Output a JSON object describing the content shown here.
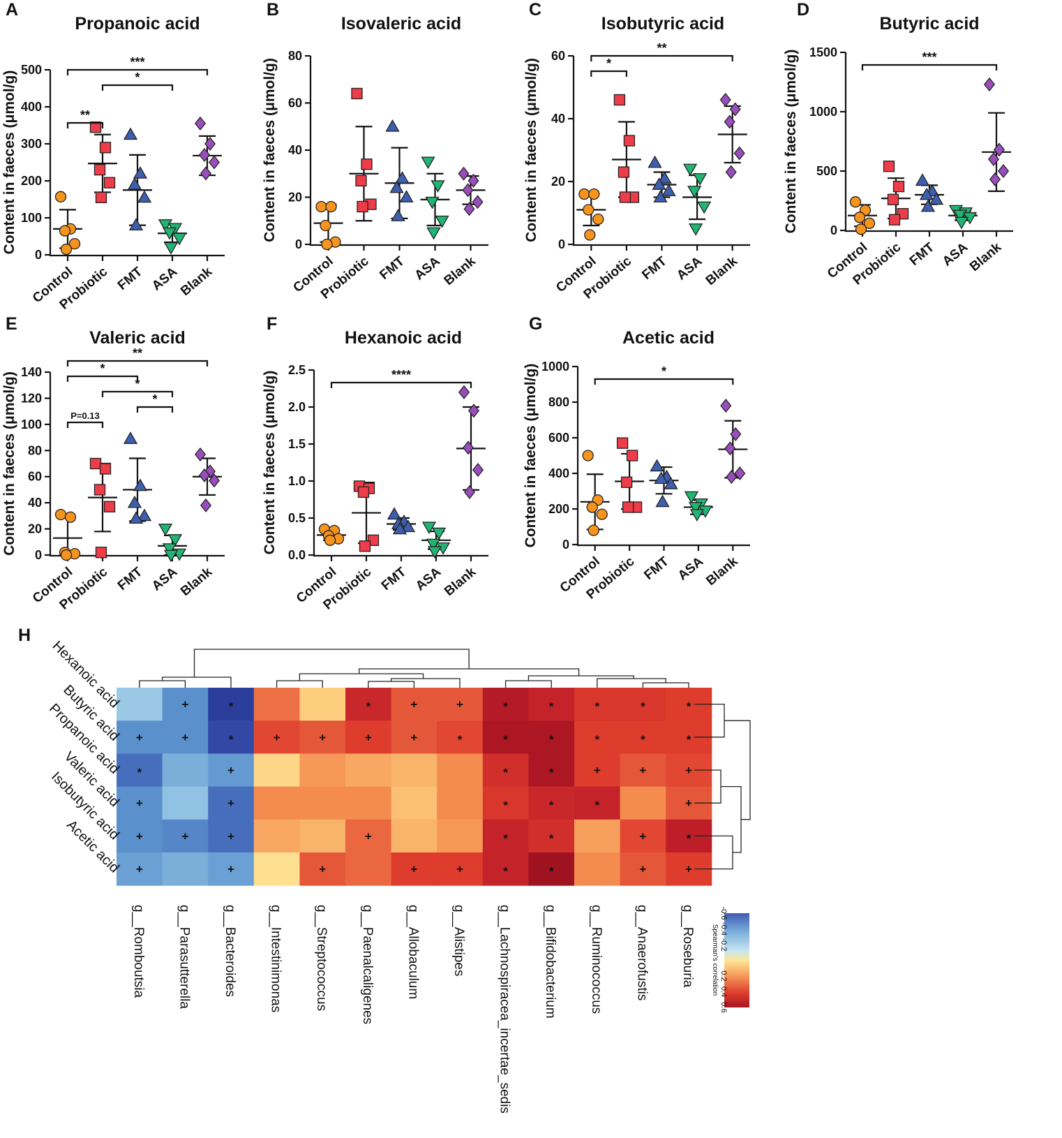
{
  "colors": {
    "Control": "#f7941d",
    "Probiotic": "#ee3d48",
    "FMT": "#3d5fae",
    "ASA": "#21b573",
    "Blank": "#9a4dbc"
  },
  "chart_data": [
    {
      "letter": "A",
      "type": "scatter",
      "title": "Propanoic acid",
      "ylabel": "Content in faeces (μmol/g)",
      "categories": [
        "Control",
        "Probiotic",
        "FMT",
        "ASA",
        "Blank"
      ],
      "ylim": [
        0,
        500
      ],
      "yticks": [
        0,
        100,
        200,
        300,
        400,
        500
      ],
      "ytick_labels": [
        "0",
        "100",
        "200",
        "300",
        "400",
        "500"
      ],
      "series": [
        {
          "name": "Control",
          "values": [
            157,
            70,
            65,
            30,
            15
          ],
          "mean": 70,
          "sd": 52
        },
        {
          "name": "Probiotic",
          "values": [
            345,
            290,
            230,
            195,
            155
          ],
          "mean": 247,
          "sd": 78
        },
        {
          "name": "FMT",
          "values": [
            325,
            220,
            190,
            155,
            80
          ],
          "mean": 175,
          "sd": 95
        },
        {
          "name": "ASA",
          "values": [
            82,
            72,
            60,
            45,
            20
          ],
          "mean": 58,
          "sd": 24
        },
        {
          "name": "Blank",
          "values": [
            355,
            300,
            270,
            250,
            220
          ],
          "mean": 268,
          "sd": 53
        }
      ],
      "significance": [
        {
          "from": "Control",
          "to": "Blank",
          "label": "***"
        },
        {
          "from": "Probiotic",
          "to": "ASA",
          "label": "*"
        },
        {
          "from": "Control",
          "to": "Probiotic",
          "label": "**"
        }
      ]
    },
    {
      "letter": "B",
      "type": "scatter",
      "title": "Isovaleric acid",
      "ylabel": "Content in faeces (μmol/g)",
      "categories": [
        "Control",
        "Probiotic",
        "FMT",
        "ASA",
        "Blank"
      ],
      "ylim": [
        0,
        80
      ],
      "yticks": [
        0,
        20,
        40,
        60,
        80
      ],
      "ytick_labels": [
        "0",
        "20",
        "40",
        "60",
        "80"
      ],
      "series": [
        {
          "name": "Control",
          "values": [
            16,
            16,
            8,
            1,
            0
          ],
          "mean": 9,
          "sd": 8
        },
        {
          "name": "Probiotic",
          "values": [
            64,
            34,
            27,
            17,
            16
          ],
          "mean": 30,
          "sd": 20
        },
        {
          "name": "FMT",
          "values": [
            50,
            28,
            24,
            20,
            12
          ],
          "mean": 26,
          "sd": 15
        },
        {
          "name": "ASA",
          "values": [
            35,
            25,
            18,
            10,
            5
          ],
          "mean": 19,
          "sd": 11
        },
        {
          "name": "Blank",
          "values": [
            30,
            27,
            23,
            18,
            15
          ],
          "mean": 23,
          "sd": 6
        }
      ],
      "significance": []
    },
    {
      "letter": "C",
      "type": "scatter",
      "title": "Isobutyric acid",
      "ylabel": "Content in faeces (μmol/g)",
      "categories": [
        "Control",
        "Probiotic",
        "FMT",
        "ASA",
        "Blank"
      ],
      "ylim": [
        0,
        60
      ],
      "yticks": [
        0,
        20,
        40,
        60
      ],
      "ytick_labels": [
        "0",
        "20",
        "40",
        "60"
      ],
      "series": [
        {
          "name": "Control",
          "values": [
            16,
            16,
            11,
            8,
            3
          ],
          "mean": 11,
          "sd": 5
        },
        {
          "name": "Probiotic",
          "values": [
            46,
            33,
            23,
            15,
            15
          ],
          "mean": 27,
          "sd": 12
        },
        {
          "name": "FMT",
          "values": [
            26,
            21,
            19,
            17,
            15
          ],
          "mean": 19,
          "sd": 4
        },
        {
          "name": "ASA",
          "values": [
            24,
            21,
            17,
            12,
            5
          ],
          "mean": 15,
          "sd": 7
        },
        {
          "name": "Blank",
          "values": [
            46,
            43,
            39,
            29,
            23
          ],
          "mean": 35,
          "sd": 9
        }
      ],
      "significance": [
        {
          "from": "Control",
          "to": "Blank",
          "label": "**"
        },
        {
          "from": "Control",
          "to": "Probiotic",
          "label": "*"
        }
      ]
    },
    {
      "letter": "D",
      "type": "scatter",
      "title": "Butyric acid",
      "ylabel": "Content in faeces (μmol/g)",
      "categories": [
        "Control",
        "Probiotic",
        "FMT",
        "ASA",
        "Blank"
      ],
      "ylim": [
        0,
        1500
      ],
      "yticks": [
        0,
        500,
        1000,
        1500
      ],
      "ytick_labels": [
        "0",
        "500",
        "1000",
        "1500"
      ],
      "series": [
        {
          "name": "Control",
          "values": [
            240,
            170,
            110,
            60,
            10
          ],
          "mean": 125,
          "sd": 90
        },
        {
          "name": "Probiotic",
          "values": [
            540,
            370,
            260,
            140,
            90
          ],
          "mean": 270,
          "sd": 170
        },
        {
          "name": "FMT",
          "values": [
            420,
            330,
            300,
            260,
            200
          ],
          "mean": 300,
          "sd": 80
        },
        {
          "name": "ASA",
          "values": [
            170,
            150,
            130,
            110,
            70
          ],
          "mean": 125,
          "sd": 40
        },
        {
          "name": "Blank",
          "values": [
            1230,
            680,
            600,
            500,
            430
          ],
          "mean": 660,
          "sd": 330
        }
      ],
      "significance": [
        {
          "from": "Control",
          "to": "Blank",
          "label": "***"
        }
      ]
    },
    {
      "letter": "E",
      "type": "scatter",
      "title": "Valeric acid",
      "ylabel": "Content in faeces (μmol/g)",
      "categories": [
        "Control",
        "Probiotic",
        "FMT",
        "ASA",
        "Blank"
      ],
      "ylim": [
        0,
        140
      ],
      "yticks": [
        0,
        20,
        40,
        60,
        80,
        100,
        120,
        140
      ],
      "ytick_labels": [
        "0",
        "20",
        "40",
        "60",
        "80",
        "100",
        "120",
        "140"
      ],
      "series": [
        {
          "name": "Control",
          "values": [
            31,
            29,
            2,
            1,
            0
          ],
          "mean": 13,
          "sd": 16
        },
        {
          "name": "Probiotic",
          "values": [
            70,
            66,
            50,
            37,
            2
          ],
          "mean": 44,
          "sd": 26
        },
        {
          "name": "FMT",
          "values": [
            89,
            53,
            40,
            30,
            28
          ],
          "mean": 50,
          "sd": 24
        },
        {
          "name": "ASA",
          "values": [
            20,
            12,
            5,
            1,
            0
          ],
          "mean": 7,
          "sd": 8
        },
        {
          "name": "Blank",
          "values": [
            77,
            64,
            61,
            57,
            38
          ],
          "mean": 60,
          "sd": 14
        }
      ],
      "significance": [
        {
          "from": "Control",
          "to": "Blank",
          "label": "**"
        },
        {
          "from": "Control",
          "to": "FMT",
          "label": "*"
        },
        {
          "from": "Probiotic",
          "to": "ASA",
          "label": "*"
        },
        {
          "from": "FMT",
          "to": "ASA",
          "label": "*"
        },
        {
          "from": "Control",
          "to": "Probiotic",
          "label": "P=0.13"
        }
      ]
    },
    {
      "letter": "F",
      "type": "scatter",
      "title": "Hexanoic acid",
      "ylabel": "Content in faeces (μmol/g)",
      "categories": [
        "Control",
        "Probiotic",
        "FMT",
        "ASA",
        "Blank"
      ],
      "ylim": [
        0,
        2.5
      ],
      "yticks": [
        0,
        0.5,
        1.0,
        1.5,
        2.0,
        2.5
      ],
      "ytick_labels": [
        "0.0",
        "0.5",
        "1.0",
        "1.5",
        "2.0",
        "2.5"
      ],
      "series": [
        {
          "name": "Control",
          "values": [
            0.35,
            0.33,
            0.26,
            0.22,
            0.2
          ],
          "mean": 0.27,
          "sd": 0.07
        },
        {
          "name": "Probiotic",
          "values": [
            0.93,
            0.9,
            0.85,
            0.2,
            0.12
          ],
          "mean": 0.57,
          "sd": 0.41
        },
        {
          "name": "FMT",
          "values": [
            0.55,
            0.45,
            0.42,
            0.38,
            0.35
          ],
          "mean": 0.42,
          "sd": 0.08
        },
        {
          "name": "ASA",
          "values": [
            0.38,
            0.3,
            0.15,
            0.1,
            0.05
          ],
          "mean": 0.2,
          "sd": 0.12
        },
        {
          "name": "Blank",
          "values": [
            2.2,
            1.95,
            1.45,
            1.15,
            0.85
          ],
          "mean": 1.44,
          "sd": 0.56
        }
      ],
      "significance": [
        {
          "from": "Control",
          "to": "Blank",
          "label": "****"
        }
      ]
    },
    {
      "letter": "G",
      "type": "scatter",
      "title": "Acetic acid",
      "ylabel": "Content in faeces (μmol/g)",
      "categories": [
        "Control",
        "Probiotic",
        "FMT",
        "ASA",
        "Blank"
      ],
      "ylim": [
        0,
        1000
      ],
      "yticks": [
        0,
        200,
        400,
        600,
        800,
        1000
      ],
      "ytick_labels": [
        "0",
        "200",
        "400",
        "600",
        "800",
        "1000"
      ],
      "series": [
        {
          "name": "Control",
          "values": [
            500,
            250,
            210,
            170,
            80
          ],
          "mean": 240,
          "sd": 155
        },
        {
          "name": "Probiotic",
          "values": [
            570,
            500,
            350,
            210,
            210
          ],
          "mean": 355,
          "sd": 155
        },
        {
          "name": "FMT",
          "values": [
            440,
            380,
            370,
            340,
            240
          ],
          "mean": 360,
          "sd": 75
        },
        {
          "name": "ASA",
          "values": [
            270,
            230,
            210,
            190,
            170
          ],
          "mean": 210,
          "sd": 40
        },
        {
          "name": "Blank",
          "values": [
            780,
            620,
            540,
            400,
            380
          ],
          "mean": 535,
          "sd": 160
        }
      ],
      "significance": [
        {
          "from": "Control",
          "to": "Blank",
          "label": "*"
        }
      ]
    },
    {
      "letter": "H",
      "type": "heatmap",
      "rows": [
        "Hexanoic acid",
        "Butyric acid",
        "Propanoic acid",
        "Valeric acid",
        "Isobutyric acid",
        "Acetic acid"
      ],
      "cols": [
        "g__Romboutsia",
        "g__Parasutterella",
        "g__Bacteroides",
        "g__Intestinimonas",
        "g__Streptococcus",
        "g__Paenalcaligenes",
        "g__Allobaculum",
        "g__Alistipes",
        "g__Lachnospiracea_incertae_sedis",
        "g__Bifidobacterium",
        "g__Ruminococcus",
        "g__Anaerofustis",
        "g__Roseburia"
      ],
      "values": [
        [
          -0.25,
          -0.45,
          -0.72,
          0.4,
          0.18,
          0.58,
          0.45,
          0.45,
          0.65,
          0.6,
          0.52,
          0.52,
          0.5
        ],
        [
          -0.45,
          -0.45,
          -0.68,
          0.48,
          0.45,
          0.5,
          0.45,
          0.48,
          0.68,
          0.68,
          0.5,
          0.5,
          0.5
        ],
        [
          -0.55,
          -0.35,
          -0.42,
          0.15,
          0.32,
          0.28,
          0.25,
          0.35,
          0.55,
          0.68,
          0.5,
          0.45,
          0.48
        ],
        [
          -0.45,
          -0.28,
          -0.55,
          0.35,
          0.35,
          0.35,
          0.22,
          0.35,
          0.52,
          0.58,
          0.6,
          0.35,
          0.45
        ],
        [
          -0.45,
          -0.48,
          -0.55,
          0.28,
          0.25,
          0.42,
          0.25,
          0.32,
          0.6,
          0.55,
          0.3,
          0.48,
          0.62
        ],
        [
          -0.4,
          -0.35,
          -0.4,
          0.12,
          0.45,
          0.42,
          0.5,
          0.5,
          0.6,
          0.72,
          0.35,
          0.45,
          0.5
        ]
      ],
      "marks": [
        [
          "",
          "+",
          "*",
          "",
          "",
          "*",
          "+",
          "+",
          "*",
          "*",
          "*",
          "*",
          "*"
        ],
        [
          "+",
          "+",
          "*",
          "+",
          "+",
          "+",
          "+",
          "*",
          "*",
          "*",
          "*",
          "*",
          "*"
        ],
        [
          "*",
          "",
          "+",
          "",
          "",
          "",
          "",
          "",
          "*",
          "*",
          "+",
          "+",
          "+"
        ],
        [
          "+",
          "",
          "+",
          "",
          "",
          "",
          "",
          "",
          "*",
          "*",
          "*",
          "",
          "+"
        ],
        [
          "+",
          "+",
          "+",
          "",
          "",
          "+",
          "",
          "",
          "*",
          "*",
          "",
          "+",
          "*"
        ],
        [
          "+",
          "",
          "+",
          "",
          "+",
          "",
          "+",
          "+",
          "*",
          "*",
          "",
          "+",
          "+"
        ]
      ],
      "colorbar": {
        "title": "Spearman's correlation",
        "range": [
          -0.6,
          0.6
        ],
        "ticks": [
          "-0.6",
          "-0.4",
          "-0.2",
          "0.2",
          "0.4",
          "0.6"
        ],
        "tick_values": [
          -0.6,
          -0.4,
          -0.2,
          0.2,
          0.4,
          0.6
        ]
      }
    }
  ]
}
